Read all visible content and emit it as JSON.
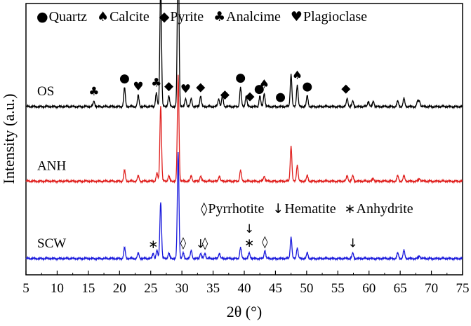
{
  "chart_data": {
    "type": "line",
    "xlabel": "2θ (°)",
    "ylabel": "Intensity (a.u.)",
    "xlim": [
      5,
      75
    ],
    "xticks": [
      "5",
      "10",
      "15",
      "20",
      "25",
      "30",
      "35",
      "40",
      "45",
      "50",
      "55",
      "60",
      "65",
      "70",
      "75"
    ],
    "y_ticks_shown": false,
    "grid": false,
    "legend_position": "top",
    "legend": [
      {
        "symbol": "●",
        "label": "Quartz"
      },
      {
        "symbol": "♠",
        "label": "Calcite"
      },
      {
        "symbol": "◆",
        "label": "Pyrite"
      },
      {
        "symbol": "♣",
        "label": "Analcime"
      },
      {
        "symbol": "♥",
        "label": "Plagioclase"
      }
    ],
    "legend2": [
      {
        "symbol": "◊",
        "label": "Pyrrhotite"
      },
      {
        "symbol": "↓",
        "label": "Hematite"
      },
      {
        "symbol": "∗",
        "label": "Anhydrite"
      }
    ],
    "series": [
      {
        "name": "OS",
        "color": "#000000",
        "offset": 0.62,
        "peaks": [
          [
            15.9,
            0.02
          ],
          [
            20.8,
            0.07
          ],
          [
            23.0,
            0.04
          ],
          [
            25.9,
            0.05
          ],
          [
            26.6,
            0.46
          ],
          [
            27.9,
            0.04
          ],
          [
            29.4,
            0.63
          ],
          [
            30.6,
            0.03
          ],
          [
            31.5,
            0.03
          ],
          [
            33.0,
            0.04
          ],
          [
            35.9,
            0.03
          ],
          [
            36.5,
            0.04
          ],
          [
            39.4,
            0.07
          ],
          [
            40.3,
            0.04
          ],
          [
            42.5,
            0.04
          ],
          [
            43.2,
            0.05
          ],
          [
            47.5,
            0.12
          ],
          [
            48.5,
            0.08
          ],
          [
            50.1,
            0.04
          ],
          [
            56.5,
            0.03
          ],
          [
            57.4,
            0.02
          ],
          [
            59.9,
            0.02
          ],
          [
            60.7,
            0.02
          ],
          [
            64.6,
            0.02
          ],
          [
            65.6,
            0.03
          ],
          [
            67.8,
            0.02
          ],
          [
            68.1,
            0.02
          ]
        ],
        "markers": [
          {
            "symbol": "♣",
            "x": 15.9
          },
          {
            "symbol": "●",
            "x": 20.8
          },
          {
            "symbol": "♥",
            "x": 23.0
          },
          {
            "symbol": "♣",
            "x": 25.9
          },
          {
            "symbol": "●",
            "x": 26.6
          },
          {
            "symbol": "◆",
            "x": 27.9
          },
          {
            "symbol": "♠",
            "x": 29.4
          },
          {
            "symbol": "♥",
            "x": 30.6
          },
          {
            "symbol": "◆",
            "x": 33.0
          },
          {
            "symbol": "◆",
            "x": 36.9
          },
          {
            "symbol": "●",
            "x": 39.4
          },
          {
            "symbol": "◆",
            "x": 40.9
          },
          {
            "symbol": "●",
            "x": 42.4
          },
          {
            "symbol": "♠",
            "x": 43.2
          },
          {
            "symbol": "●",
            "x": 45.8
          },
          {
            "symbol": "♠",
            "x": 48.5
          },
          {
            "symbol": "●",
            "x": 50.1
          },
          {
            "symbol": "◆",
            "x": 56.3
          }
        ]
      },
      {
        "name": "ANH",
        "color": "#e0201e",
        "offset": 0.345,
        "peaks": [
          [
            20.8,
            0.04
          ],
          [
            23.0,
            0.02
          ],
          [
            26.0,
            0.03
          ],
          [
            26.6,
            0.28
          ],
          [
            27.9,
            0.02
          ],
          [
            29.4,
            0.39
          ],
          [
            31.5,
            0.02
          ],
          [
            33.0,
            0.02
          ],
          [
            36.0,
            0.02
          ],
          [
            39.4,
            0.04
          ],
          [
            43.2,
            0.02
          ],
          [
            47.5,
            0.13
          ],
          [
            48.5,
            0.06
          ],
          [
            50.1,
            0.02
          ],
          [
            56.5,
            0.02
          ],
          [
            57.4,
            0.02
          ],
          [
            60.7,
            0.01
          ],
          [
            64.6,
            0.02
          ],
          [
            65.6,
            0.02
          ],
          [
            68.1,
            0.01
          ]
        ],
        "markers": []
      },
      {
        "name": "SCW",
        "color": "#1a1adc",
        "offset": 0.06,
        "peaks": [
          [
            20.8,
            0.04
          ],
          [
            23.0,
            0.02
          ],
          [
            25.4,
            0.02
          ],
          [
            26.0,
            0.03
          ],
          [
            26.6,
            0.21
          ],
          [
            27.9,
            0.02
          ],
          [
            29.4,
            0.39
          ],
          [
            30.2,
            0.02
          ],
          [
            31.5,
            0.03
          ],
          [
            33.0,
            0.02
          ],
          [
            33.7,
            0.02
          ],
          [
            36.0,
            0.02
          ],
          [
            39.4,
            0.04
          ],
          [
            40.8,
            0.02
          ],
          [
            43.3,
            0.03
          ],
          [
            47.5,
            0.08
          ],
          [
            48.5,
            0.04
          ],
          [
            50.1,
            0.02
          ],
          [
            57.4,
            0.02
          ],
          [
            64.6,
            0.02
          ],
          [
            65.6,
            0.03
          ],
          [
            68.1,
            0.01
          ]
        ],
        "markers": [
          {
            "symbol": "∗",
            "x": 25.4
          },
          {
            "symbol": "◊",
            "x": 30.2
          },
          {
            "symbol": "↓",
            "x": 33.0
          },
          {
            "symbol": "◊",
            "x": 33.7
          },
          {
            "symbol": "∗",
            "x": 40.8
          },
          {
            "symbol": "↓",
            "x": 40.8
          },
          {
            "symbol": "◊",
            "x": 43.3
          },
          {
            "symbol": "↓",
            "x": 57.4
          }
        ]
      }
    ]
  }
}
